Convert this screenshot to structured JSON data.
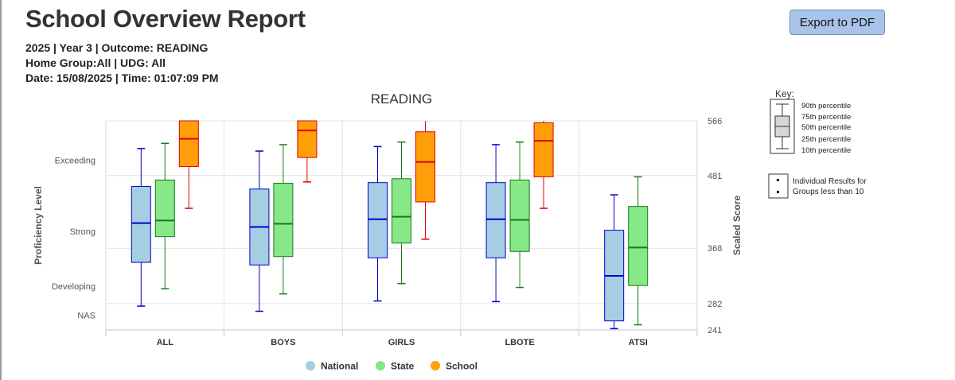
{
  "header": {
    "title": "School Overview Report",
    "line1": "2025 | Year 3 | Outcome: READING",
    "line2": "Home Group:All | UDG: All",
    "line3": "Date: 15/08/2025 | Time: 01:07:09 PM",
    "export_label": "Export to PDF"
  },
  "key": {
    "title": "Key:",
    "percentiles": [
      "90th percentile",
      "75th percentile",
      "50th percentile",
      "25th percentile",
      "10th percentile"
    ],
    "individual": [
      "Individual Results for",
      "Groups less than 10"
    ]
  },
  "colors": {
    "national_fill": "#a6cee3",
    "national_stroke": "#0000cc",
    "state_fill": "#86e886",
    "state_stroke": "#1a7a1a",
    "school_fill": "#ff9f0a",
    "school_stroke": "#e00000"
  },
  "chart_data": {
    "type": "boxplot",
    "title": "READING",
    "categories": [
      "ALL",
      "BOYS",
      "GIRLS",
      "LBOTE",
      "ATSI"
    ],
    "left_axis": {
      "label": "Proficiency Level",
      "ticks": [
        {
          "label": "Exceeding",
          "value": 505
        },
        {
          "label": "Strong",
          "value": 394
        },
        {
          "label": "Developing",
          "value": 309
        },
        {
          "label": "NAS",
          "value": 264
        }
      ]
    },
    "right_axis": {
      "label": "Scaled Score",
      "ticks": [
        566,
        481,
        368,
        282,
        241
      ]
    },
    "ylim": [
      241,
      566
    ],
    "gridlines": [
      481,
      368,
      282
    ],
    "legend": {
      "position": "bottom"
    },
    "series": [
      {
        "name": "National",
        "boxes": [
          {
            "p10": 278,
            "p25": 346,
            "p50": 407,
            "p75": 464,
            "p90": 523
          },
          {
            "p10": 270,
            "p25": 342,
            "p50": 401,
            "p75": 460,
            "p90": 519
          },
          {
            "p10": 286,
            "p25": 353,
            "p50": 413,
            "p75": 470,
            "p90": 526
          },
          {
            "p10": 285,
            "p25": 353,
            "p50": 413,
            "p75": 470,
            "p90": 529
          },
          {
            "p10": 243,
            "p25": 255,
            "p50": 325,
            "p75": 396,
            "p90": 451
          }
        ]
      },
      {
        "name": "State",
        "boxes": [
          {
            "p10": 305,
            "p25": 386,
            "p50": 411,
            "p75": 474,
            "p90": 531
          },
          {
            "p10": 297,
            "p25": 355,
            "p50": 406,
            "p75": 469,
            "p90": 529
          },
          {
            "p10": 313,
            "p25": 376,
            "p50": 417,
            "p75": 476,
            "p90": 533
          },
          {
            "p10": 307,
            "p25": 363,
            "p50": 412,
            "p75": 474,
            "p90": 533
          },
          {
            "p10": 249,
            "p25": 310,
            "p50": 369,
            "p75": 433,
            "p90": 479
          }
        ]
      },
      {
        "name": "School",
        "boxes": [
          {
            "p10": 430,
            "p25": 495,
            "p50": 538,
            "p75": 566,
            "p90": 566
          },
          {
            "p10": 471,
            "p25": 509,
            "p50": 551,
            "p75": 566,
            "p90": 566
          },
          {
            "p10": 382,
            "p25": 440,
            "p50": 502,
            "p75": 549,
            "p90": 566
          },
          {
            "p10": 430,
            "p25": 479,
            "p50": 535,
            "p75": 563,
            "p90": 566
          },
          null
        ]
      }
    ]
  }
}
